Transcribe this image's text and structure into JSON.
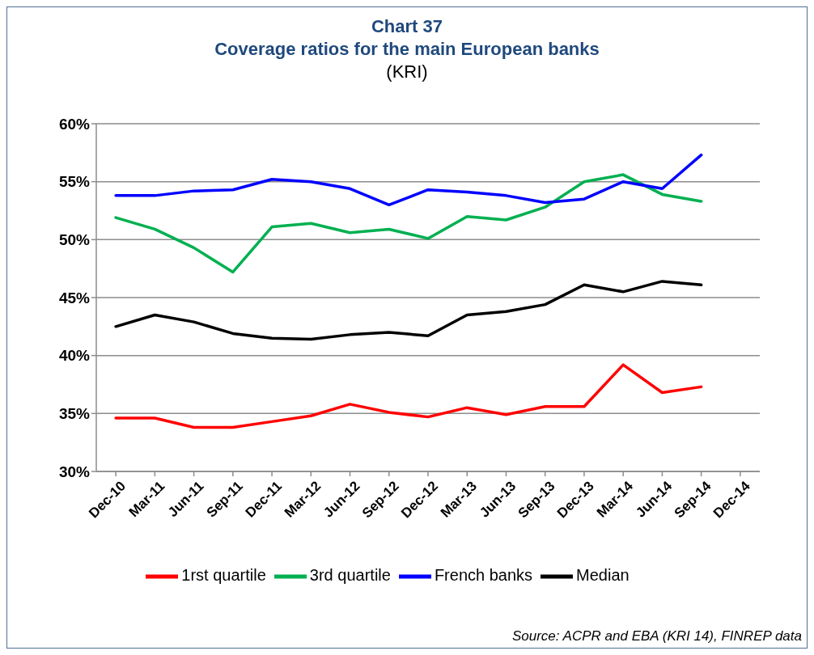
{
  "chart_data": {
    "type": "line",
    "title": "Chart 37\nCoverage ratios for the main European banks",
    "subtitle": "(KRI)",
    "categories": [
      "Dec-10",
      "Mar-11",
      "Jun-11",
      "Sep-11",
      "Dec-11",
      "Mar-12",
      "Jun-12",
      "Sep-12",
      "Dec-12",
      "Mar-13",
      "Jun-13",
      "Sep-13",
      "Dec-13",
      "Mar-14",
      "Jun-14",
      "Sep-14",
      "Dec-14"
    ],
    "series": [
      {
        "name": "1rst quartile",
        "color": "#ff0000",
        "values": [
          34.6,
          34.6,
          33.8,
          33.8,
          34.3,
          34.8,
          35.8,
          35.1,
          34.7,
          35.5,
          34.9,
          35.6,
          35.6,
          39.2,
          36.8,
          37.3,
          null
        ]
      },
      {
        "name": "Median",
        "color": "#000000",
        "values": [
          42.5,
          43.5,
          42.9,
          41.9,
          41.5,
          41.4,
          41.8,
          42.0,
          41.7,
          43.5,
          43.8,
          44.4,
          46.1,
          45.5,
          46.4,
          46.1,
          null
        ]
      },
      {
        "name": "3rd quartile",
        "color": "#00b050",
        "values": [
          51.9,
          50.9,
          49.3,
          47.2,
          51.1,
          51.4,
          50.6,
          50.9,
          50.1,
          52.0,
          51.7,
          52.8,
          55.0,
          55.6,
          53.9,
          53.3,
          null
        ]
      },
      {
        "name": "French banks",
        "color": "#0000ff",
        "values": [
          53.8,
          53.8,
          54.2,
          54.3,
          55.2,
          55.0,
          54.4,
          53.0,
          54.3,
          54.1,
          53.8,
          53.2,
          53.5,
          55.0,
          54.4,
          57.3,
          null
        ]
      }
    ],
    "ylim": [
      30,
      60
    ],
    "yticks": [
      {
        "value": 30,
        "label": "30%"
      },
      {
        "value": 35,
        "label": "35%"
      },
      {
        "value": 40,
        "label": "40%"
      },
      {
        "value": 45,
        "label": "45%"
      },
      {
        "value": 50,
        "label": "50%"
      },
      {
        "value": 55,
        "label": "55%"
      },
      {
        "value": 60,
        "label": "60%"
      }
    ],
    "grid": "y",
    "legend": "bottom",
    "marker": "none",
    "line_style": "solid",
    "annotations": [
      "Source: ACPR and EBA (KRI 14), FINREP data"
    ]
  }
}
